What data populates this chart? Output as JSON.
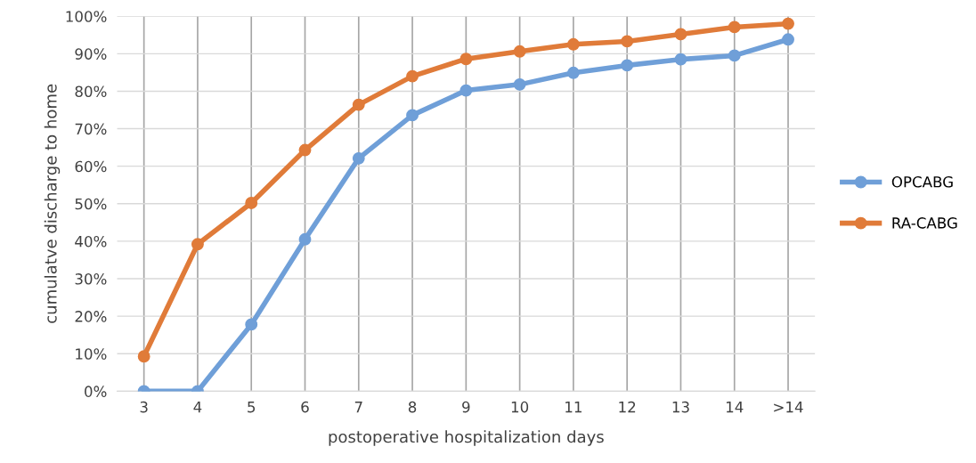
{
  "chart_data": {
    "type": "line",
    "xlabel": "postoperative hospitalization days",
    "ylabel": "cumulatve discharge to home",
    "categories": [
      "3",
      "4",
      "5",
      "6",
      "7",
      "8",
      "9",
      "10",
      "11",
      "12",
      "13",
      "14",
      ">14"
    ],
    "series": [
      {
        "name": "OPCABG",
        "color": "#6f9fd8",
        "values": [
          0,
          0,
          17.8,
          40.5,
          62.1,
          73.6,
          80.2,
          81.8,
          84.9,
          86.9,
          88.5,
          89.5,
          93.8
        ]
      },
      {
        "name": "RA-CABG",
        "color": "#e07b39",
        "values": [
          9.3,
          39.2,
          50.2,
          64.3,
          76.4,
          84.0,
          88.6,
          90.6,
          92.5,
          93.3,
          95.2,
          97.1,
          98.0
        ]
      }
    ],
    "ylim": [
      0,
      100
    ],
    "yticks": [
      {
        "value": 0,
        "label": "0%"
      },
      {
        "value": 10,
        "label": "10%"
      },
      {
        "value": 20,
        "label": "20%"
      },
      {
        "value": 30,
        "label": "30%"
      },
      {
        "value": 40,
        "label": "40%"
      },
      {
        "value": 50,
        "label": "50%"
      },
      {
        "value": 60,
        "label": "60%"
      },
      {
        "value": 70,
        "label": "70%"
      },
      {
        "value": 80,
        "label": "80%"
      },
      {
        "value": 90,
        "label": "90%"
      },
      {
        "value": 100,
        "label": "100%"
      }
    ],
    "grid": true,
    "legend": "right",
    "marker": "circle",
    "line_style": "solid"
  }
}
